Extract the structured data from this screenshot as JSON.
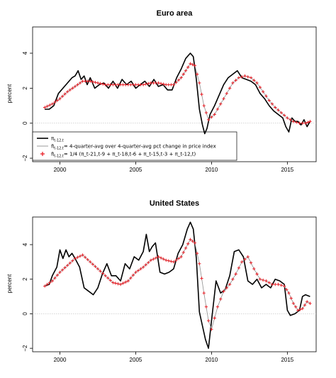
{
  "chart_data": [
    {
      "type": "line",
      "title": "Euro area",
      "xlabel": "",
      "ylabel": "percent",
      "xlim": [
        1998.2,
        2016.9
      ],
      "ylim": [
        -2.2,
        5.5
      ],
      "xticks": [
        2000,
        2005,
        2010,
        2015
      ],
      "yticks": [
        -2,
        0,
        2,
        4
      ],
      "grid": false,
      "zero_line": true,
      "legend": {
        "position": "bottom-left",
        "entries": [
          {
            "symbol": "line-black",
            "main": "π",
            "sub": "t-12,t",
            "rest": ""
          },
          {
            "symbol": "line-gray",
            "main": "π̄",
            "sub": "t-12,t",
            "rest": "= 4-quarter-avg over 4-quarter-avg pct change in price index"
          },
          {
            "symbol": "plus-red",
            "main": "π̄",
            "sub": "t-12,t",
            "rest": "= 1/4 (π_t-21,t-9 + π_t-18,t-6 + π_t-15,t-3 + π_t-12,t)"
          }
        ]
      },
      "series": [
        {
          "name": "π t-12,t",
          "color": "#000000",
          "style": "line",
          "x": [
            1999.0,
            1999.3,
            1999.6,
            1999.9,
            2000.2,
            2000.5,
            2000.8,
            2001.0,
            2001.2,
            2001.4,
            2001.6,
            2001.8,
            2002.0,
            2002.3,
            2002.6,
            2002.9,
            2003.2,
            2003.5,
            2003.8,
            2004.1,
            2004.4,
            2004.7,
            2005.0,
            2005.3,
            2005.6,
            2005.9,
            2006.2,
            2006.5,
            2006.8,
            2007.1,
            2007.4,
            2007.7,
            2008.0,
            2008.3,
            2008.6,
            2008.8,
            2009.0,
            2009.2,
            2009.4,
            2009.55,
            2009.7,
            2009.9,
            2010.2,
            2010.5,
            2010.8,
            2011.1,
            2011.4,
            2011.7,
            2012.0,
            2012.3,
            2012.6,
            2012.9,
            2013.2,
            2013.5,
            2013.8,
            2014.1,
            2014.4,
            2014.7,
            2014.9,
            2015.1,
            2015.3,
            2015.5,
            2015.7,
            2015.9,
            2016.1,
            2016.3,
            2016.5
          ],
          "y": [
            0.8,
            0.8,
            1.0,
            1.7,
            2.0,
            2.3,
            2.6,
            2.7,
            3.0,
            2.5,
            2.7,
            2.2,
            2.6,
            2.0,
            2.2,
            2.3,
            2.0,
            2.4,
            2.0,
            2.5,
            2.2,
            2.4,
            2.0,
            2.2,
            2.4,
            2.1,
            2.5,
            2.1,
            2.2,
            1.9,
            1.9,
            2.6,
            3.1,
            3.7,
            4.0,
            3.8,
            2.5,
            0.8,
            -0.1,
            -0.6,
            -0.3,
            0.5,
            1.0,
            1.6,
            2.2,
            2.6,
            2.8,
            3.0,
            2.6,
            2.5,
            2.4,
            2.2,
            1.7,
            1.4,
            1.0,
            0.7,
            0.5,
            0.3,
            -0.2,
            -0.5,
            0.3,
            0.1,
            0.1,
            -0.1,
            0.2,
            -0.2,
            0.1
          ]
        },
        {
          "name": "π̄ t-12,t (4-quarter-avg)",
          "color": "#9a9a9a",
          "style": "line",
          "x": [
            1999.0,
            1999.5,
            2000.0,
            2000.5,
            2001.0,
            2001.5,
            2002.0,
            2002.5,
            2003.0,
            2003.5,
            2004.0,
            2004.5,
            2005.0,
            2005.5,
            2006.0,
            2006.5,
            2007.0,
            2007.5,
            2008.0,
            2008.3,
            2008.6,
            2008.9,
            2009.2,
            2009.5,
            2009.8,
            2010.2,
            2010.6,
            2011.0,
            2011.4,
            2011.8,
            2012.2,
            2012.6,
            2013.0,
            2013.4,
            2013.8,
            2014.2,
            2014.6,
            2015.0,
            2015.4,
            2015.8,
            2016.2,
            2016.5
          ],
          "y": [
            0.9,
            1.1,
            1.4,
            1.8,
            2.1,
            2.4,
            2.4,
            2.3,
            2.2,
            2.2,
            2.2,
            2.2,
            2.2,
            2.2,
            2.3,
            2.3,
            2.2,
            2.2,
            2.6,
            3.0,
            3.4,
            3.3,
            2.3,
            1.0,
            0.2,
            0.5,
            1.1,
            1.7,
            2.3,
            2.6,
            2.7,
            2.6,
            2.3,
            1.8,
            1.3,
            0.9,
            0.6,
            0.3,
            0.1,
            0.0,
            0.0,
            0.1
          ]
        },
        {
          "name": "π̄ t-12,t = 1/4 (...)",
          "color": "#e8141c",
          "style": "plus",
          "x": [
            1999.0,
            1999.5,
            2000.0,
            2000.5,
            2001.0,
            2001.5,
            2002.0,
            2002.5,
            2003.0,
            2003.5,
            2004.0,
            2004.5,
            2005.0,
            2005.5,
            2006.0,
            2006.5,
            2007.0,
            2007.5,
            2008.0,
            2008.3,
            2008.6,
            2008.9,
            2009.2,
            2009.5,
            2009.8,
            2010.2,
            2010.6,
            2011.0,
            2011.4,
            2011.8,
            2012.2,
            2012.6,
            2013.0,
            2013.4,
            2013.8,
            2014.2,
            2014.6,
            2015.0,
            2015.4,
            2015.8,
            2016.2,
            2016.5
          ],
          "y": [
            0.9,
            1.1,
            1.4,
            1.8,
            2.1,
            2.4,
            2.4,
            2.3,
            2.2,
            2.2,
            2.2,
            2.2,
            2.2,
            2.2,
            2.3,
            2.3,
            2.2,
            2.2,
            2.6,
            3.0,
            3.4,
            3.3,
            2.3,
            1.0,
            0.2,
            0.5,
            1.1,
            1.7,
            2.3,
            2.6,
            2.7,
            2.6,
            2.3,
            1.8,
            1.3,
            0.9,
            0.6,
            0.3,
            0.1,
            0.0,
            0.0,
            0.1
          ]
        }
      ]
    },
    {
      "type": "line",
      "title": "United States",
      "xlabel": "",
      "ylabel": "percent",
      "xlim": [
        1998.2,
        2016.9
      ],
      "ylim": [
        -2.2,
        5.6
      ],
      "xticks": [
        2000,
        2005,
        2010,
        2015
      ],
      "yticks": [
        -2,
        0,
        2,
        4
      ],
      "grid": false,
      "zero_line": true,
      "series": [
        {
          "name": "π t-12,t",
          "color": "#000000",
          "style": "line",
          "x": [
            1999.0,
            1999.3,
            1999.5,
            1999.8,
            2000.0,
            2000.2,
            2000.4,
            2000.6,
            2000.8,
            2001.0,
            2001.3,
            2001.6,
            2001.9,
            2002.2,
            2002.5,
            2002.8,
            2003.1,
            2003.4,
            2003.7,
            2004.0,
            2004.3,
            2004.6,
            2004.9,
            2005.2,
            2005.5,
            2005.7,
            2005.9,
            2006.1,
            2006.3,
            2006.6,
            2006.9,
            2007.2,
            2007.5,
            2007.8,
            2008.1,
            2008.4,
            2008.6,
            2008.8,
            2009.0,
            2009.2,
            2009.4,
            2009.6,
            2009.8,
            2010.0,
            2010.3,
            2010.6,
            2010.9,
            2011.2,
            2011.5,
            2011.8,
            2012.1,
            2012.4,
            2012.7,
            2013.0,
            2013.3,
            2013.6,
            2013.9,
            2014.2,
            2014.5,
            2014.8,
            2015.0,
            2015.2,
            2015.5,
            2015.8,
            2016.0,
            2016.2,
            2016.5
          ],
          "y": [
            1.6,
            1.7,
            2.2,
            2.7,
            3.7,
            3.2,
            3.7,
            3.3,
            3.5,
            3.2,
            2.7,
            1.5,
            1.3,
            1.1,
            1.5,
            2.3,
            2.9,
            2.2,
            2.2,
            1.9,
            2.9,
            2.6,
            3.3,
            3.1,
            3.6,
            4.6,
            3.6,
            3.9,
            4.1,
            2.4,
            2.3,
            2.4,
            2.6,
            3.5,
            4.0,
            4.9,
            5.3,
            4.9,
            3.2,
            0.1,
            -0.7,
            -1.5,
            -2.0,
            -0.4,
            1.9,
            1.2,
            1.4,
            2.2,
            3.6,
            3.7,
            3.3,
            1.9,
            1.7,
            2.0,
            1.5,
            1.7,
            1.5,
            2.0,
            1.9,
            1.7,
            0.2,
            -0.1,
            0.0,
            0.2,
            1.0,
            1.1,
            1.0
          ]
        },
        {
          "name": "π̄ t-12,t (4-quarter-avg)",
          "color": "#9a9a9a",
          "style": "line",
          "x": [
            1999.0,
            1999.5,
            2000.0,
            2000.5,
            2001.0,
            2001.5,
            2002.0,
            2002.5,
            2003.0,
            2003.5,
            2004.0,
            2004.5,
            2005.0,
            2005.5,
            2006.0,
            2006.5,
            2007.0,
            2007.5,
            2008.0,
            2008.3,
            2008.6,
            2008.9,
            2009.2,
            2009.5,
            2009.8,
            2010.0,
            2010.4,
            2010.8,
            2011.2,
            2011.6,
            2012.0,
            2012.4,
            2012.8,
            2013.2,
            2013.6,
            2014.0,
            2014.4,
            2014.8,
            2015.1,
            2015.4,
            2015.7,
            2016.0,
            2016.3,
            2016.5
          ],
          "y": [
            1.6,
            1.9,
            2.4,
            2.8,
            3.2,
            3.4,
            3.0,
            2.6,
            2.2,
            1.8,
            1.7,
            1.9,
            2.4,
            2.7,
            3.1,
            3.3,
            3.1,
            3.0,
            3.3,
            3.8,
            4.3,
            4.1,
            2.9,
            1.2,
            -0.4,
            -0.9,
            0.4,
            1.3,
            1.7,
            2.3,
            3.0,
            3.3,
            2.6,
            2.0,
            1.9,
            1.7,
            1.7,
            1.6,
            1.2,
            0.6,
            0.2,
            0.3,
            0.7,
            0.6
          ]
        },
        {
          "name": "π̄ t-12,t = 1/4 (...)",
          "color": "#e8141c",
          "style": "plus",
          "x": [
            1999.0,
            1999.5,
            2000.0,
            2000.5,
            2001.0,
            2001.5,
            2002.0,
            2002.5,
            2003.0,
            2003.5,
            2004.0,
            2004.5,
            2005.0,
            2005.5,
            2006.0,
            2006.5,
            2007.0,
            2007.5,
            2008.0,
            2008.3,
            2008.6,
            2008.9,
            2009.2,
            2009.5,
            2009.8,
            2010.0,
            2010.4,
            2010.8,
            2011.2,
            2011.6,
            2012.0,
            2012.4,
            2012.8,
            2013.2,
            2013.6,
            2014.0,
            2014.4,
            2014.8,
            2015.1,
            2015.4,
            2015.7,
            2016.0,
            2016.3,
            2016.5
          ],
          "y": [
            1.6,
            1.9,
            2.4,
            2.8,
            3.2,
            3.4,
            3.0,
            2.6,
            2.2,
            1.8,
            1.7,
            1.9,
            2.4,
            2.7,
            3.1,
            3.3,
            3.1,
            3.0,
            3.3,
            3.8,
            4.3,
            4.1,
            2.9,
            1.2,
            -0.4,
            -0.9,
            0.4,
            1.3,
            1.7,
            2.3,
            3.0,
            3.3,
            2.6,
            2.0,
            1.9,
            1.7,
            1.7,
            1.6,
            1.2,
            0.6,
            0.2,
            0.3,
            0.7,
            0.6
          ]
        }
      ]
    }
  ]
}
